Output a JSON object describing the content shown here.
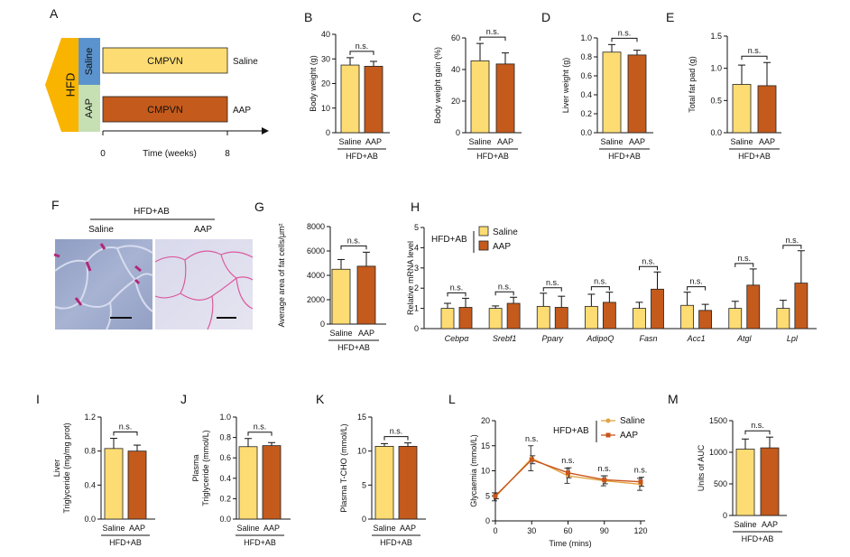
{
  "colors": {
    "saline": "#FDDC73",
    "aap": "#C45A1C",
    "hfd": "#F9B400",
    "saline_box": "#5B93CE",
    "aap_box": "#C6E0B4",
    "saline_line": "#E1A443",
    "aap_line": "#C9541A"
  },
  "panel_a": {
    "label": "A",
    "hfd": "HFD",
    "saline": "Saline",
    "aap": "AAP",
    "cmpvn": "CMPVN",
    "end_saline": "Saline",
    "end_aap": "AAP",
    "t0": "0",
    "t8": "8",
    "time": "Time (weeks)"
  },
  "panel_f": {
    "label": "F",
    "group": "HFD+AB",
    "saline": "Saline",
    "aap": "AAP"
  },
  "panel_h_legend": {
    "group": "HFD+AB",
    "saline": "Saline",
    "aap": "AAP"
  },
  "panel_l_legend": {
    "group": "HFD+AB",
    "saline": "Saline",
    "aap": "AAP"
  },
  "chart_data": [
    {
      "id": "B",
      "type": "bar",
      "label": "B",
      "ylabel": "Body weight (g)",
      "ylim": [
        0,
        40
      ],
      "yticks": [
        "0",
        "10",
        "20",
        "30",
        "40"
      ],
      "categories": [
        "Saline",
        "AAP"
      ],
      "values": [
        27.5,
        27
      ],
      "errors": [
        3,
        2
      ],
      "group_label": "HFD+AB",
      "sig": "n.s."
    },
    {
      "id": "C",
      "type": "bar",
      "label": "C",
      "ylabel": "Body weight gain (%)",
      "ylim": [
        0,
        60
      ],
      "yticks": [
        "0",
        "20",
        "40",
        "60"
      ],
      "categories": [
        "Saline",
        "AAP"
      ],
      "values": [
        45.5,
        43.5
      ],
      "errors": [
        11,
        7
      ],
      "group_label": "HFD+AB",
      "sig": "n.s."
    },
    {
      "id": "D",
      "type": "bar",
      "label": "D",
      "ylabel": "Liver weight (g)",
      "ylim": [
        0,
        1.0
      ],
      "yticks": [
        "0.0",
        "0.2",
        "0.4",
        "0.6",
        "0.8",
        "1.0"
      ],
      "categories": [
        "Saline",
        "AAP"
      ],
      "values": [
        0.85,
        0.82
      ],
      "errors": [
        0.08,
        0.05
      ],
      "group_label": "HFD+AB",
      "sig": "n.s."
    },
    {
      "id": "E",
      "type": "bar",
      "label": "E",
      "ylabel": "Total fat pad (g)",
      "ylim": [
        0,
        1.5
      ],
      "yticks": [
        "0.0",
        "0.5",
        "1.0",
        "1.5"
      ],
      "categories": [
        "Saline",
        "AAP"
      ],
      "values": [
        0.75,
        0.73
      ],
      "errors": [
        0.3,
        0.36
      ],
      "group_label": "HFD+AB",
      "sig": "n.s."
    },
    {
      "id": "G",
      "type": "bar",
      "label": "G",
      "ylabel": "Average area of fat cells/μm²",
      "ylim": [
        0,
        8000
      ],
      "yticks": [
        "0",
        "2000",
        "4000",
        "6000",
        "8000"
      ],
      "categories": [
        "Saline",
        "AAP"
      ],
      "values": [
        4500,
        4750
      ],
      "errors": [
        800,
        1150
      ],
      "group_label": "HFD+AB",
      "sig": "n.s."
    },
    {
      "id": "H",
      "type": "bar",
      "label": "H",
      "ylabel": "Relative mRNA level",
      "ylim": [
        0,
        5
      ],
      "yticks": [
        "0",
        "1",
        "2",
        "3",
        "4",
        "5"
      ],
      "categories": [
        "Cebpα",
        "Srebf1",
        "Pparγ",
        "AdipoQ",
        "Fasn",
        "Acc1",
        "Atgl",
        "Lpl"
      ],
      "series": [
        {
          "name": "Saline",
          "values": [
            1.0,
            1.0,
            1.1,
            1.1,
            1.0,
            1.15,
            1.0,
            1.0
          ],
          "errors": [
            0.25,
            0.12,
            0.65,
            0.6,
            0.3,
            0.65,
            0.35,
            0.4
          ]
        },
        {
          "name": "AAP",
          "values": [
            1.05,
            1.25,
            1.05,
            1.3,
            1.95,
            0.9,
            2.15,
            2.25
          ],
          "errors": [
            0.45,
            0.3,
            0.55,
            0.5,
            0.85,
            0.3,
            0.8,
            1.6
          ]
        }
      ],
      "sig": "n.s."
    },
    {
      "id": "I",
      "type": "bar",
      "label": "I",
      "ylabel": "Liver Triglyceride (mg/mg prot)",
      "ylim": [
        0,
        1.2
      ],
      "yticks": [
        "0.0",
        "0.4",
        "0.8",
        "1.2"
      ],
      "categories": [
        "Saline",
        "AAP"
      ],
      "values": [
        0.83,
        0.8
      ],
      "errors": [
        0.12,
        0.07
      ],
      "group_label": "HFD+AB",
      "sig": "n.s."
    },
    {
      "id": "J",
      "type": "bar",
      "label": "J",
      "ylabel": "Plasma Triglyceride (mmol/L)",
      "ylim": [
        0,
        1.0
      ],
      "yticks": [
        "0.0",
        "0.2",
        "0.4",
        "0.6",
        "0.8",
        "1.0"
      ],
      "categories": [
        "Saline",
        "AAP"
      ],
      "values": [
        0.71,
        0.72
      ],
      "errors": [
        0.08,
        0.03
      ],
      "group_label": "HFD+AB",
      "sig": "n.s."
    },
    {
      "id": "K",
      "type": "bar",
      "label": "K",
      "ylabel": "Plasma T-CHO (mmol/L)",
      "ylim": [
        0,
        15
      ],
      "yticks": [
        "0",
        "5",
        "10",
        "15"
      ],
      "categories": [
        "Saline",
        "AAP"
      ],
      "values": [
        10.7,
        10.7
      ],
      "errors": [
        0.4,
        0.5
      ],
      "group_label": "HFD+AB",
      "sig": "n.s."
    },
    {
      "id": "L",
      "type": "line",
      "label": "L",
      "ylabel": "Glycaemia (mmol/L)",
      "xlabel": "Time (mins)",
      "ylim": [
        0,
        20
      ],
      "yticks": [
        "0",
        "5",
        "10",
        "15",
        "20"
      ],
      "x": [
        0,
        30,
        60,
        90,
        120
      ],
      "xticks": [
        "0",
        "30",
        "60",
        "90",
        "120"
      ],
      "series": [
        {
          "name": "Saline",
          "values": [
            4.8,
            12.5,
            9.0,
            8.0,
            7.3
          ],
          "errors": [
            0.8,
            2.5,
            1.5,
            1.0,
            1.2
          ]
        },
        {
          "name": "AAP",
          "values": [
            5.0,
            12.2,
            9.6,
            8.2,
            7.8
          ],
          "errors": [
            0.6,
            0.8,
            1.0,
            0.8,
            0.9
          ]
        }
      ],
      "sig_labels": [
        "n.s.",
        "n.s.",
        "n.s.",
        "n.s."
      ]
    },
    {
      "id": "M",
      "type": "bar",
      "label": "M",
      "ylabel": "Units of AUC",
      "ylim": [
        0,
        1500
      ],
      "yticks": [
        "0",
        "500",
        "1000",
        "1500"
      ],
      "categories": [
        "Saline",
        "AAP"
      ],
      "values": [
        1050,
        1070
      ],
      "errors": [
        160,
        170
      ],
      "group_label": "HFD+AB",
      "sig": "n.s."
    }
  ]
}
